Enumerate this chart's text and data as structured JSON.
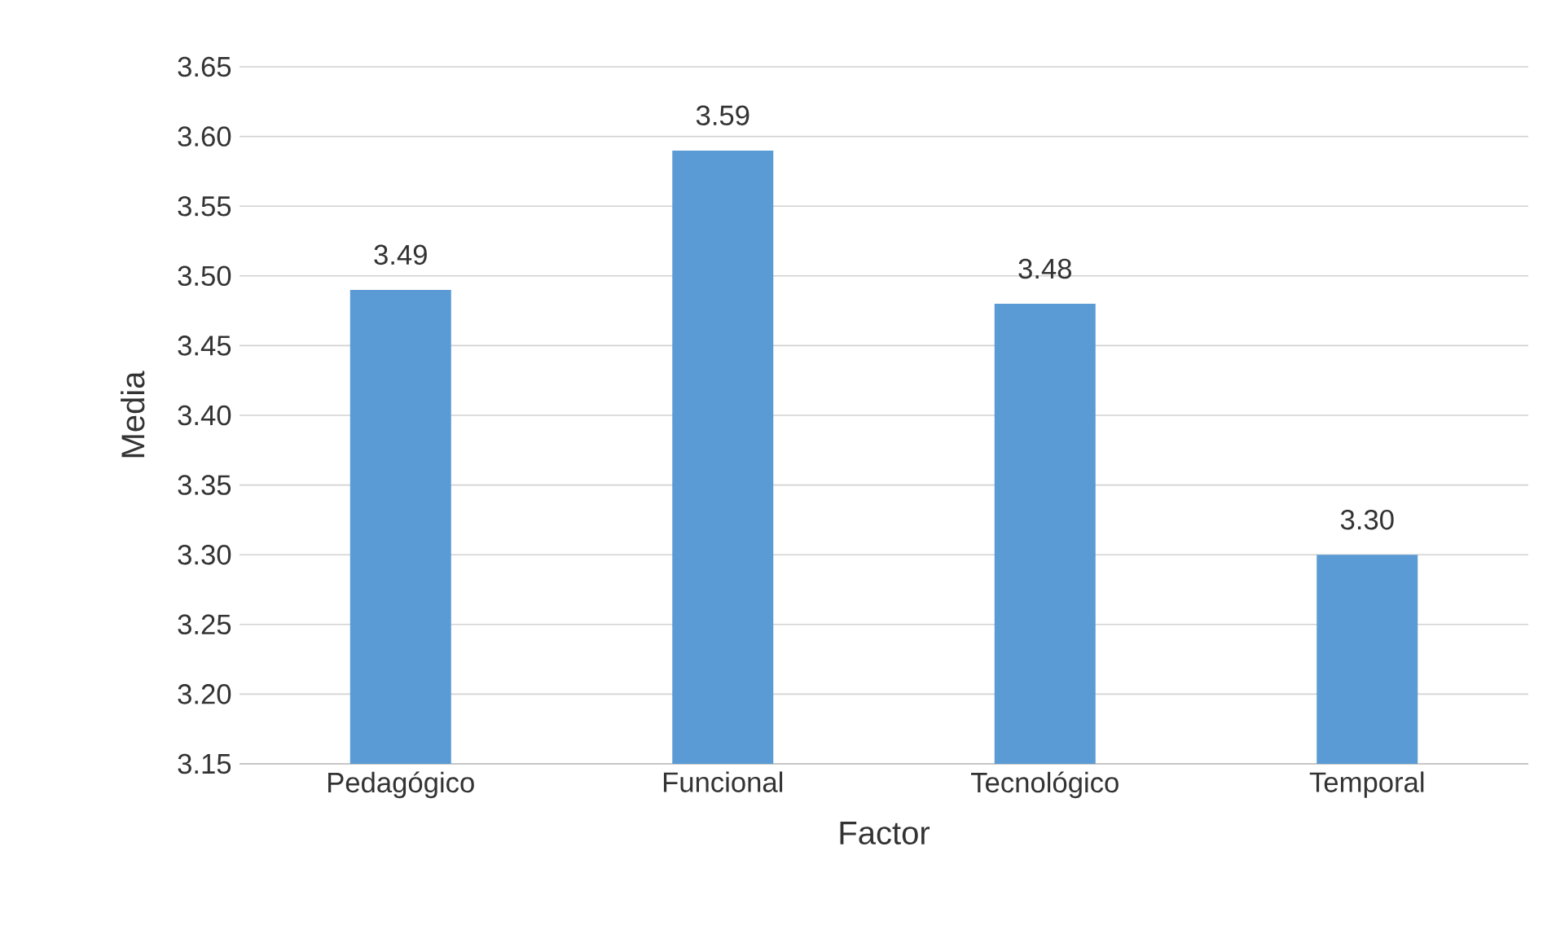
{
  "chart_data": {
    "type": "bar",
    "xlabel": "Factor",
    "ylabel": "Media",
    "categories": [
      "Pedagógico",
      "Funcional",
      "Tecnológico",
      "Temporal"
    ],
    "values": [
      3.49,
      3.59,
      3.48,
      3.3
    ],
    "value_labels": [
      "3.49",
      "3.59",
      "3.48",
      "3.30"
    ],
    "color": "#5b9bd5",
    "ylim": [
      3.15,
      3.65
    ],
    "yticks": [
      3.15,
      {
        "value": 3.2,
        "label": "3.20"
      },
      3.25,
      {
        "value": 3.3,
        "label": "3.30"
      },
      3.35,
      {
        "value": 3.4,
        "label": "3.40"
      },
      3.45,
      {
        "value": 3.5,
        "label": "3.50"
      },
      3.55,
      {
        "value": 3.6,
        "label": "3.60"
      },
      3.65
    ],
    "grid": "y"
  }
}
